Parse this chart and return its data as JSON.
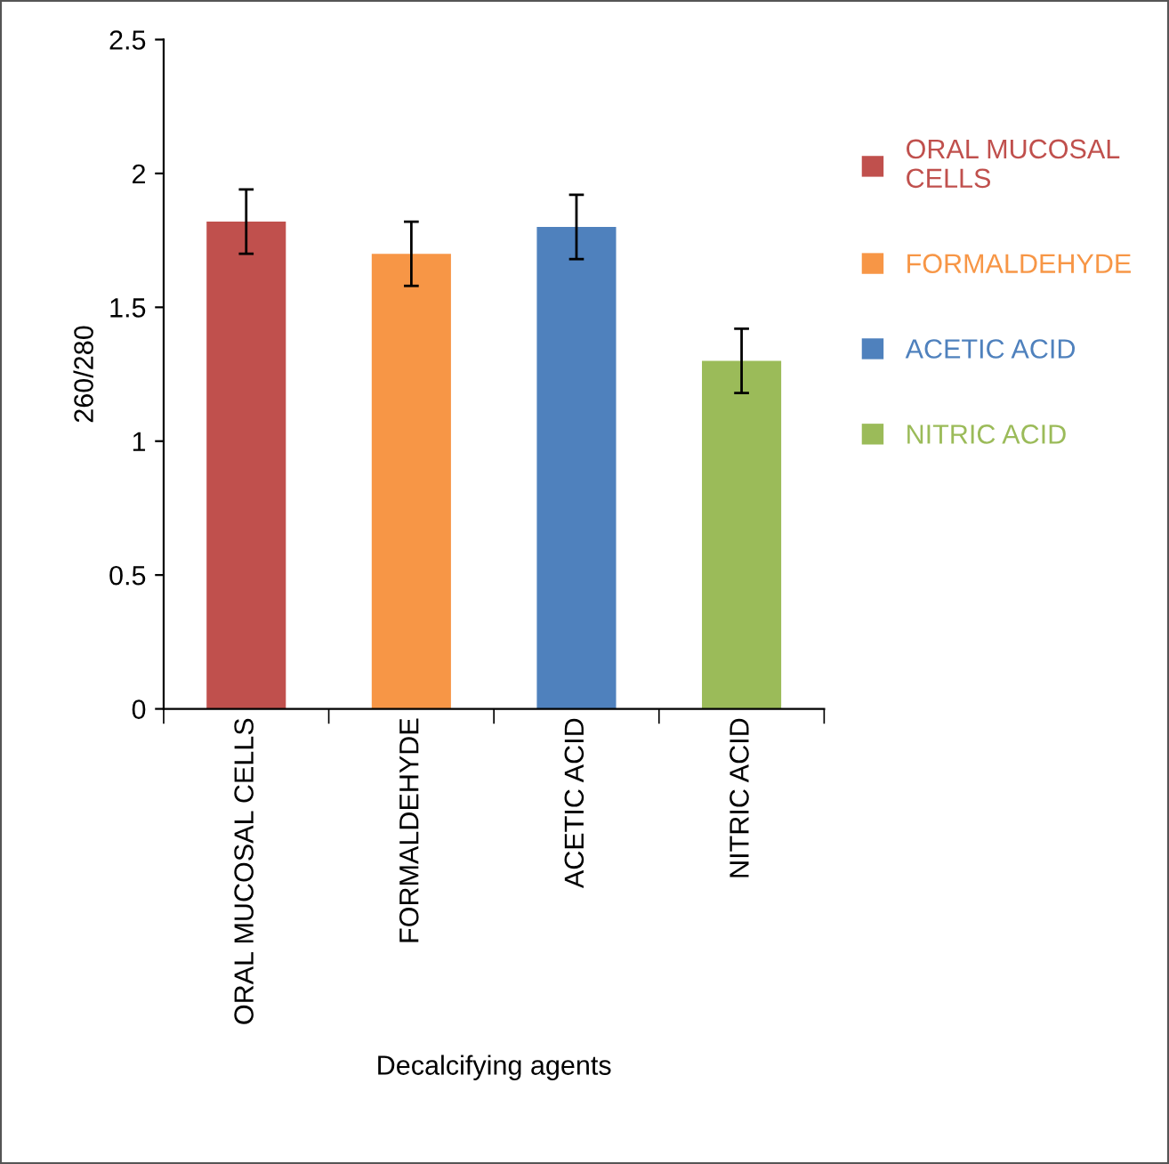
{
  "chart_data": {
    "type": "bar",
    "xlabel": "Decalcifying agents",
    "ylabel": "260/280",
    "categories": [
      "ORAL MUCOSAL CELLS",
      "FORMALDEHYDE",
      "ACETIC ACID",
      "NITRIC ACID"
    ],
    "series": [
      {
        "name": "ORAL MUCOSAL CELLS",
        "color": "#c0504d",
        "values": [
          1.82,
          null,
          null,
          null
        ],
        "errors": [
          0.12,
          null,
          null,
          null
        ]
      },
      {
        "name": "FORMALDEHYDE",
        "color": "#f79646",
        "values": [
          null,
          1.7,
          null,
          null
        ],
        "errors": [
          null,
          0.12,
          null,
          null
        ]
      },
      {
        "name": "ACETIC ACID",
        "color": "#4f81bd",
        "values": [
          null,
          null,
          1.8,
          null
        ],
        "errors": [
          null,
          null,
          0.12,
          null
        ]
      },
      {
        "name": "NITRIC ACID",
        "color": "#9bbb59",
        "values": [
          null,
          null,
          null,
          1.3
        ],
        "errors": [
          null,
          null,
          null,
          0.12
        ]
      }
    ],
    "ylim": [
      0,
      2.5
    ],
    "yticks": [
      0,
      0.5,
      1,
      1.5,
      2,
      2.5
    ],
    "grid": false,
    "legend": "right"
  }
}
